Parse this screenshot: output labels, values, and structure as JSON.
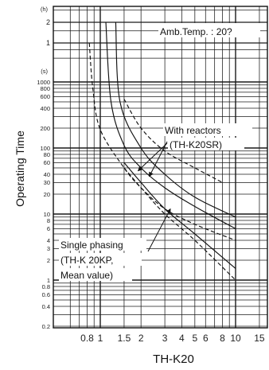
{
  "chart_data": {
    "type": "line",
    "title": "",
    "xlabel": "TH-K20",
    "ylabel": "Operating Time",
    "x_scale": "log",
    "y_scale": "log",
    "grid": true,
    "y_section_labels": [
      "(h)",
      "(s)"
    ],
    "ytick_labels_hours": [
      "2",
      "1"
    ],
    "ytick_labels_seconds": [
      "1000",
      "800",
      "600",
      "400",
      "200",
      "100",
      "80",
      "60",
      "40",
      "30",
      "20",
      "10",
      "8",
      "6",
      "4",
      "3",
      "2",
      "1",
      "0.8",
      "0.6",
      "0.4",
      "0.2"
    ],
    "ytick_labels": [
      "1000-",
      "800-",
      "600-",
      "400-",
      "200-",
      "100-",
      "80-",
      "60-",
      "40-",
      "30-",
      "20-",
      "10-",
      "8-",
      "6-",
      "4-",
      "3-",
      "2-",
      "1-",
      "0.8-",
      "0.6-",
      "0.4-",
      "0.2-"
    ],
    "xtick_labels": [
      "0.8",
      "1",
      "1.5",
      "2",
      "3",
      "4",
      "5",
      "6",
      "8",
      "10",
      "15"
    ],
    "annotations": [
      "Amb.Temp. : 20?",
      "With reactors",
      "(TH-K20SR)",
      "Single phasing",
      "(TH-K 20KP,",
      "Mean  value)"
    ],
    "series": [
      {
        "style": "solid",
        "points": [
          [
            1.1,
            7200
          ],
          [
            1.2,
            500
          ],
          [
            1.5,
            110
          ],
          [
            2,
            50
          ],
          [
            3,
            25
          ],
          [
            5,
            13
          ],
          [
            10,
            6
          ]
        ]
      },
      {
        "style": "solid",
        "points": [
          [
            1.3,
            7200
          ],
          [
            1.4,
            500
          ],
          [
            2,
            100
          ],
          [
            3,
            40
          ],
          [
            5,
            18
          ],
          [
            10,
            9
          ]
        ]
      },
      {
        "style": "dashed",
        "points": [
          [
            1.5,
            550
          ],
          [
            2,
            200
          ],
          [
            3,
            90
          ],
          [
            5,
            50
          ],
          [
            8,
            30
          ]
        ]
      },
      {
        "style": "dashed",
        "points": [
          [
            0.83,
            3600
          ],
          [
            0.88,
            800
          ],
          [
            1,
            190
          ],
          [
            1.5,
            50
          ],
          [
            2,
            25
          ],
          [
            3,
            12
          ],
          [
            5,
            7
          ],
          [
            10,
            4
          ]
        ]
      },
      {
        "style": "solid",
        "points": [
          [
            1.5,
            60
          ],
          [
            2,
            30
          ],
          [
            3,
            12
          ],
          [
            5,
            5
          ],
          [
            10,
            1.5
          ]
        ]
      },
      {
        "style": "dashed",
        "points": [
          [
            1.5,
            50
          ],
          [
            2,
            25
          ],
          [
            3,
            10
          ],
          [
            5,
            4
          ],
          [
            10,
            1
          ]
        ]
      }
    ]
  }
}
